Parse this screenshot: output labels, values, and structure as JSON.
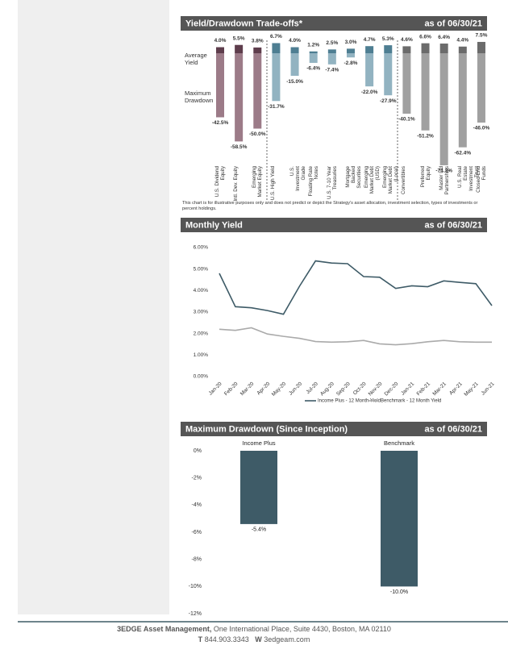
{
  "chart_data": [
    {
      "type": "bar",
      "title": "Yield/Drawdown Trade-offs*",
      "date": "as of 06/30/21",
      "categories": [
        "U.S. Dividend Equity",
        "Intl. Dev. Equity",
        "Emerging Market Equity",
        "U.S. High Yield",
        "U.S. Investment Grade",
        "Floating Rate Notes",
        "U.S. 7-10 Year Treasuries",
        "Mortgage Backed Securities",
        "Emerging Market Debt (USD)",
        "Emerging Market Debt (Local)",
        "Convertibles",
        "Preferred Equity",
        "Master Ltd Partnerships",
        "U.S. Real Estate Investment Trust",
        "Closed-End Funds"
      ],
      "series": [
        {
          "name": "Average Yield",
          "values": [
            4.0,
            5.5,
            3.8,
            6.7,
            4.0,
            1.2,
            2.5,
            3.0,
            4.7,
            5.3,
            4.6,
            6.6,
            6.4,
            4.4,
            7.5
          ],
          "value_labels": [
            "4.0%",
            "5.5%",
            "3.8%",
            "6.7%",
            "4.0%",
            "1.2%",
            "2.5%",
            "3.0%",
            "4.7%",
            "5.3%",
            "4.6%",
            "6.6%",
            "6.4%",
            "4.4%",
            "7.5%"
          ],
          "colors": [
            "#5e3d4c",
            "#5e3d4c",
            "#5e3d4c",
            "#4e7e92",
            "#4e7e92",
            "#4e7e92",
            "#4e7e92",
            "#4e7e92",
            "#4e7e92",
            "#4e7e92",
            "#6b6b6b",
            "#6b6b6b",
            "#6b6b6b",
            "#6b6b6b",
            "#6b6b6b"
          ]
        },
        {
          "name": "Maximum Drawdown",
          "values": [
            -42.5,
            -58.5,
            -50.0,
            -31.7,
            -15.0,
            -6.4,
            -7.4,
            -2.8,
            -22.0,
            -27.9,
            -40.1,
            -51.2,
            -74.3,
            -62.4,
            -46.0
          ],
          "value_labels": [
            "-42.5%",
            "-58.5%",
            "-50.0%",
            "-31.7%",
            "-15.0%",
            "-6.4%",
            "-7.4%",
            "-2.8%",
            "-22.0%",
            "-27.9%",
            "-40.1%",
            "-51.2%",
            "-74.3%",
            "-62.4%",
            "-46.0%"
          ],
          "colors": [
            "#9c7b88",
            "#9c7b88",
            "#9c7b88",
            "#92b3c1",
            "#92b3c1",
            "#92b3c1",
            "#92b3c1",
            "#92b3c1",
            "#92b3c1",
            "#92b3c1",
            "#a0a0a0",
            "#a0a0a0",
            "#a0a0a0",
            "#a0a0a0",
            "#a0a0a0"
          ]
        }
      ],
      "footnote": "This chart is for illustrative purposes only and does not predict or depict the Strategy's asset allocation, investment selection, types of investments or percent holdings."
    },
    {
      "type": "line",
      "title": "Monthly Yield",
      "date": "as of 06/30/21",
      "categories": [
        "Jan-20",
        "Feb-20",
        "Mar-20",
        "Apr-20",
        "May-20",
        "Jun-20",
        "Jul-20",
        "Aug-20",
        "Sep-20",
        "Oct-20",
        "Nov-20",
        "Dec-20",
        "Jan-21",
        "Feb-21",
        "Mar-21",
        "Apr-21",
        "May-21",
        "Jun-21"
      ],
      "series": [
        {
          "name": "Income Plus - 12 Month Yield",
          "color": "#3e5b67",
          "values": [
            4.8,
            3.25,
            3.2,
            3.07,
            2.9,
            4.2,
            5.38,
            5.28,
            5.25,
            4.65,
            4.62,
            4.1,
            4.22,
            4.18,
            4.45,
            4.38,
            4.32,
            3.3
          ]
        },
        {
          "name": "Benchmark - 12 Month Yield",
          "color": "#aaaaaa",
          "values": [
            2.2,
            2.15,
            2.27,
            1.98,
            1.87,
            1.78,
            1.63,
            1.6,
            1.62,
            1.68,
            1.52,
            1.48,
            1.53,
            1.62,
            1.68,
            1.62,
            1.6,
            1.6
          ]
        }
      ],
      "ylim": [
        0,
        6
      ],
      "yticks": [
        {
          "value": 0,
          "label": "0.00%"
        },
        {
          "value": 1,
          "label": "1.00%"
        },
        {
          "value": 2,
          "label": "2.00%"
        },
        {
          "value": 3,
          "label": "3.00%"
        },
        {
          "value": 4,
          "label": "4.00%"
        },
        {
          "value": 5,
          "label": "5.00%"
        },
        {
          "value": 6,
          "label": "6.00%"
        }
      ]
    },
    {
      "type": "bar",
      "title": "Maximum Drawdown (Since Inception)",
      "date": "as of 06/30/21",
      "categories": [
        "Income Plus",
        "Benchmark"
      ],
      "values": [
        -5.4,
        -10.0
      ],
      "value_labels": [
        "-5.4%",
        "-10.0%"
      ],
      "color": "#3e5b67",
      "ylim": [
        -12,
        0
      ],
      "yticks": [
        {
          "value": 0,
          "label": "0%"
        },
        {
          "value": -2,
          "label": "-2%"
        },
        {
          "value": -4,
          "label": "-4%"
        },
        {
          "value": -6,
          "label": "-6%"
        },
        {
          "value": -8,
          "label": "-8%"
        },
        {
          "value": -10,
          "label": "-10%"
        },
        {
          "value": -12,
          "label": "-12%"
        }
      ]
    }
  ],
  "footer": {
    "company": "3EDGE Asset Management,",
    "address": "One International Place, Suite 4430, Boston, MA 02110",
    "phone_label": "T",
    "phone": "844.903.3343",
    "web_label": "W",
    "web": "3edgeam.com"
  }
}
